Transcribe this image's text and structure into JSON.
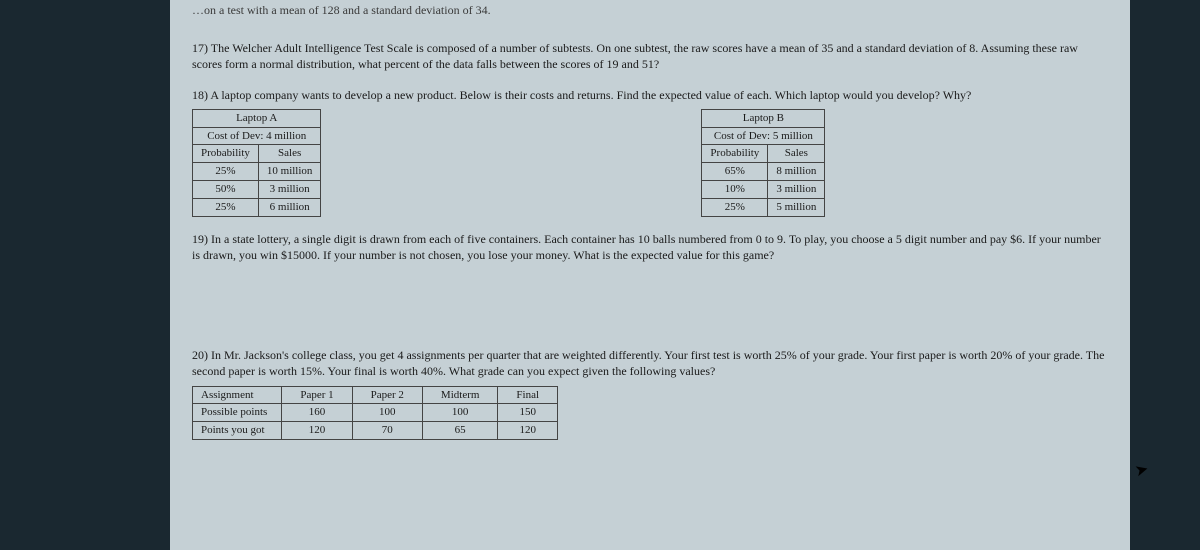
{
  "partial_top": "…on a test with a mean of 128 and a standard deviation of 34.",
  "q17": {
    "text": "17) The Welcher Adult Intelligence Test Scale is composed of a number of subtests. On one subtest, the raw scores have a mean of 35 and a standard deviation of 8. Assuming these raw scores form a normal distribution, what percent of the data falls between the scores of 19 and 51?"
  },
  "q18": {
    "text": "18) A laptop company wants to develop a new product. Below is their costs and returns. Find the expected value of each. Which laptop would you develop? Why?",
    "laptopA": {
      "title": "Laptop A",
      "cost": "Cost of Dev: 4 million",
      "headers": [
        "Probability",
        "Sales"
      ],
      "rows": [
        [
          "25%",
          "10 million"
        ],
        [
          "50%",
          "3 million"
        ],
        [
          "25%",
          "6 million"
        ]
      ]
    },
    "laptopB": {
      "title": "Laptop B",
      "cost": "Cost of Dev: 5 million",
      "headers": [
        "Probability",
        "Sales"
      ],
      "rows": [
        [
          "65%",
          "8 million"
        ],
        [
          "10%",
          "3 million"
        ],
        [
          "25%",
          "5 million"
        ]
      ]
    }
  },
  "q19": {
    "text": "19) In a state lottery, a single digit is drawn from each of five containers. Each container has 10 balls numbered from 0 to 9. To play, you choose a 5 digit number and pay $6. If your number is drawn, you win $15000. If your number is not chosen, you lose your money. What is the expected value for this game?"
  },
  "q20": {
    "text": "20) In Mr. Jackson's college class, you get 4 assignments per quarter that are weighted differently. Your first test is worth 25% of your grade. Your first paper is worth 20% of your grade. The second paper is worth 15%. Your final is worth 40%. What grade can you expect given the following values?",
    "table": {
      "rowLabels": [
        "Assignment",
        "Possible points",
        "Points you got"
      ],
      "cols": [
        "Paper 1",
        "Paper 2",
        "Midterm",
        "Final"
      ],
      "possible": [
        "160",
        "100",
        "100",
        "150"
      ],
      "got": [
        "120",
        "70",
        "65",
        "120"
      ]
    }
  }
}
